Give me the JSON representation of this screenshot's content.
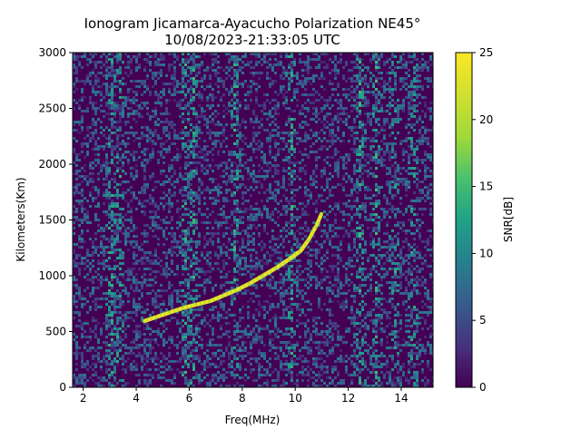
{
  "chart_data": {
    "type": "heatmap",
    "title_line1": "Ionogram Jicamarca-Ayacucho Polarization NE45°",
    "title_line2": "10/08/2023-21:33:05 UTC",
    "xlabel": "Freq(MHz)",
    "ylabel": "Kilometers(Km)",
    "colorbar_label": "SNR[dB]",
    "colormap": "viridis",
    "xlim": [
      1.6,
      15.2
    ],
    "ylim": [
      0,
      3000
    ],
    "clim": [
      0,
      25
    ],
    "xticks": [
      2,
      4,
      6,
      8,
      10,
      12,
      14
    ],
    "yticks": [
      0,
      500,
      1000,
      1500,
      2000,
      2500,
      3000
    ],
    "cticks": [
      0,
      5,
      10,
      15,
      20,
      25
    ],
    "trace": {
      "name": "",
      "freq_mhz": [
        4.3,
        4.8,
        5.3,
        5.8,
        6.3,
        6.8,
        7.3,
        7.8,
        8.3,
        8.8,
        9.3,
        9.8,
        10.2,
        10.5,
        10.8,
        11.0
      ],
      "range_km": [
        590,
        630,
        670,
        710,
        740,
        770,
        820,
        870,
        930,
        1000,
        1070,
        1150,
        1220,
        1320,
        1450,
        1560
      ],
      "snr_db": 24
    },
    "noise_columns_mhz": [
      3.0,
      3.3,
      5.8,
      6.1,
      7.7,
      9.8,
      12.4,
      13.0,
      13.7,
      14.4
    ]
  }
}
